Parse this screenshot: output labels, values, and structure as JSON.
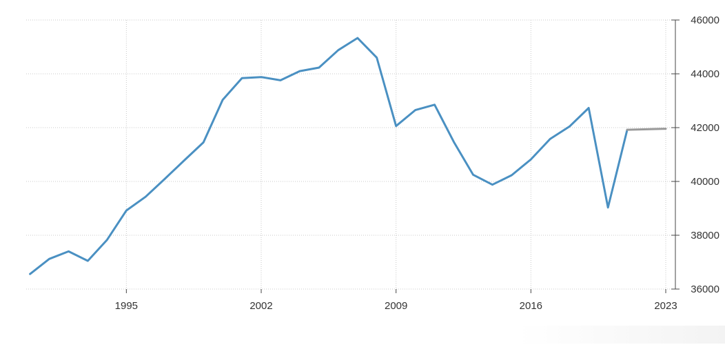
{
  "chart_data": {
    "type": "line",
    "title": "",
    "xlabel": "",
    "ylabel": "",
    "x_ticks": [
      "1995",
      "2002",
      "2009",
      "2016",
      "2023"
    ],
    "y_ticks": [
      "36000",
      "38000",
      "40000",
      "42000",
      "44000",
      "46000"
    ],
    "ylim": [
      36000,
      46000
    ],
    "xlim": [
      1989.8,
      2023.5
    ],
    "grid": true,
    "y_axis_side": "right",
    "series": [
      {
        "color": "#4a90c2",
        "points": [
          {
            "x": 1990,
            "y": 36560
          },
          {
            "x": 1991,
            "y": 37120
          },
          {
            "x": 1992,
            "y": 37400
          },
          {
            "x": 1993,
            "y": 37050
          },
          {
            "x": 1994,
            "y": 37830
          },
          {
            "x": 1995,
            "y": 38920
          },
          {
            "x": 1996,
            "y": 39430
          },
          {
            "x": 1997,
            "y": 40100
          },
          {
            "x": 1998,
            "y": 40780
          },
          {
            "x": 1999,
            "y": 41450
          },
          {
            "x": 2000,
            "y": 43030
          },
          {
            "x": 2001,
            "y": 43840
          },
          {
            "x": 2002,
            "y": 43880
          },
          {
            "x": 2003,
            "y": 43760
          },
          {
            "x": 2004,
            "y": 44100
          },
          {
            "x": 2005,
            "y": 44230
          },
          {
            "x": 2006,
            "y": 44880
          },
          {
            "x": 2007,
            "y": 45330
          },
          {
            "x": 2008,
            "y": 44600
          },
          {
            "x": 2009,
            "y": 42060
          },
          {
            "x": 2010,
            "y": 42650
          },
          {
            "x": 2011,
            "y": 42850
          },
          {
            "x": 2012,
            "y": 41470
          },
          {
            "x": 2013,
            "y": 40250
          },
          {
            "x": 2014,
            "y": 39880
          },
          {
            "x": 2015,
            "y": 40230
          },
          {
            "x": 2016,
            "y": 40820
          },
          {
            "x": 2017,
            "y": 41580
          },
          {
            "x": 2018,
            "y": 42040
          },
          {
            "x": 2019,
            "y": 42730
          },
          {
            "x": 2020,
            "y": 39030
          },
          {
            "x": 2021,
            "y": 41920
          }
        ]
      },
      {
        "color": "#999999",
        "points": [
          {
            "x": 2021,
            "y": 41920
          },
          {
            "x": 2023,
            "y": 41960
          }
        ]
      }
    ]
  }
}
